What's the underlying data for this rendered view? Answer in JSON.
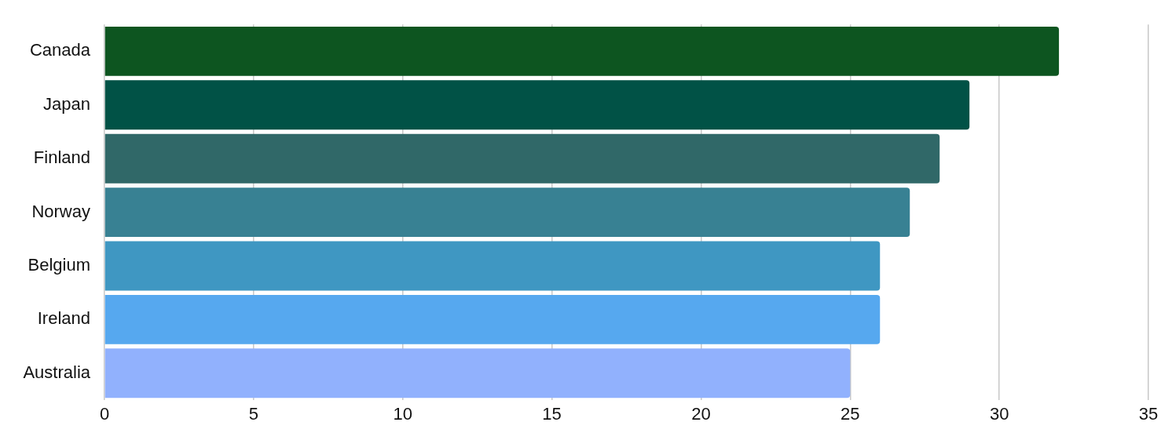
{
  "chart_data": {
    "type": "bar",
    "orientation": "horizontal",
    "categories": [
      "Canada",
      "Japan",
      "Finland",
      "Norway",
      "Belgium",
      "Ireland",
      "Australia"
    ],
    "values": [
      32,
      29,
      28,
      27,
      26,
      26,
      25
    ],
    "colors": [
      "#0d5520",
      "#015246",
      "#306868",
      "#388193",
      "#3f97c2",
      "#56a8ef",
      "#91b1fd"
    ],
    "xlim": [
      0,
      35
    ],
    "xticks": [
      0,
      5,
      10,
      15,
      20,
      25,
      30,
      35
    ],
    "grid": "x",
    "legend": false
  }
}
